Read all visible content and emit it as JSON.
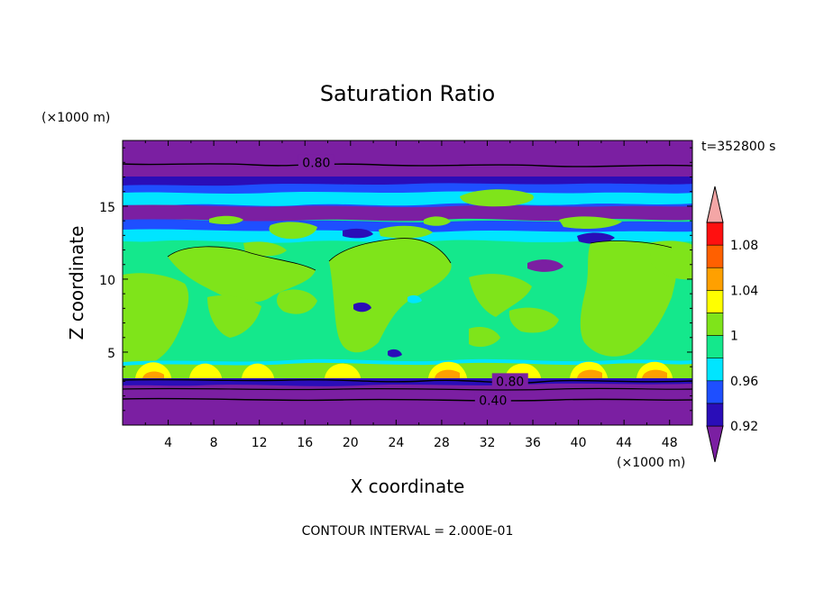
{
  "chart_data": {
    "type": "heatmap",
    "title": "Saturation Ratio",
    "xlabel": "X coordinate",
    "ylabel": "Z coordinate",
    "x_unit": "(×1000 m)",
    "y_unit": "(×1000 m)",
    "xlim": [
      0,
      50
    ],
    "ylim": [
      0,
      19.5
    ],
    "x_ticks": [
      4,
      8,
      12,
      16,
      20,
      24,
      28,
      32,
      36,
      40,
      44,
      48
    ],
    "y_ticks": [
      5,
      10,
      15
    ],
    "time_label": "t=352800 s",
    "footer": "CONTOUR INTERVAL = 2.000E-01",
    "contour_labels": [
      {
        "text": "0.80",
        "x": 17,
        "z": 18.0
      },
      {
        "text": "0.80",
        "x": 34,
        "z": 3.0
      },
      {
        "text": "0.40",
        "x": 32.5,
        "z": 1.7
      }
    ],
    "colorbar": {
      "levels": [
        0.92,
        0.94,
        0.96,
        0.98,
        1.0,
        1.02,
        1.04,
        1.06,
        1.08,
        1.1
      ],
      "colors": [
        "#7b1fa2",
        "#2a0db8",
        "#1e4fff",
        "#00e5ff",
        "#14e88c",
        "#7fe41a",
        "#ffff00",
        "#ffa000",
        "#ff6000",
        "#ff1010",
        "#f4a6a6"
      ],
      "labels": [
        "0.92",
        "0.96",
        "1",
        "1.04",
        "1.08"
      ],
      "label_values": [
        0.92,
        0.96,
        1.0,
        1.04,
        1.08
      ]
    },
    "palette": {
      "stratosphere": "#7b1fa2",
      "deep_blue": "#2a0db8",
      "mid_blue": "#1e4fff",
      "cyan": "#00e5ff",
      "green": "#14e88c",
      "lime": "#7fe41a",
      "yellow": "#ffff00",
      "orange": "#ffa000"
    }
  }
}
